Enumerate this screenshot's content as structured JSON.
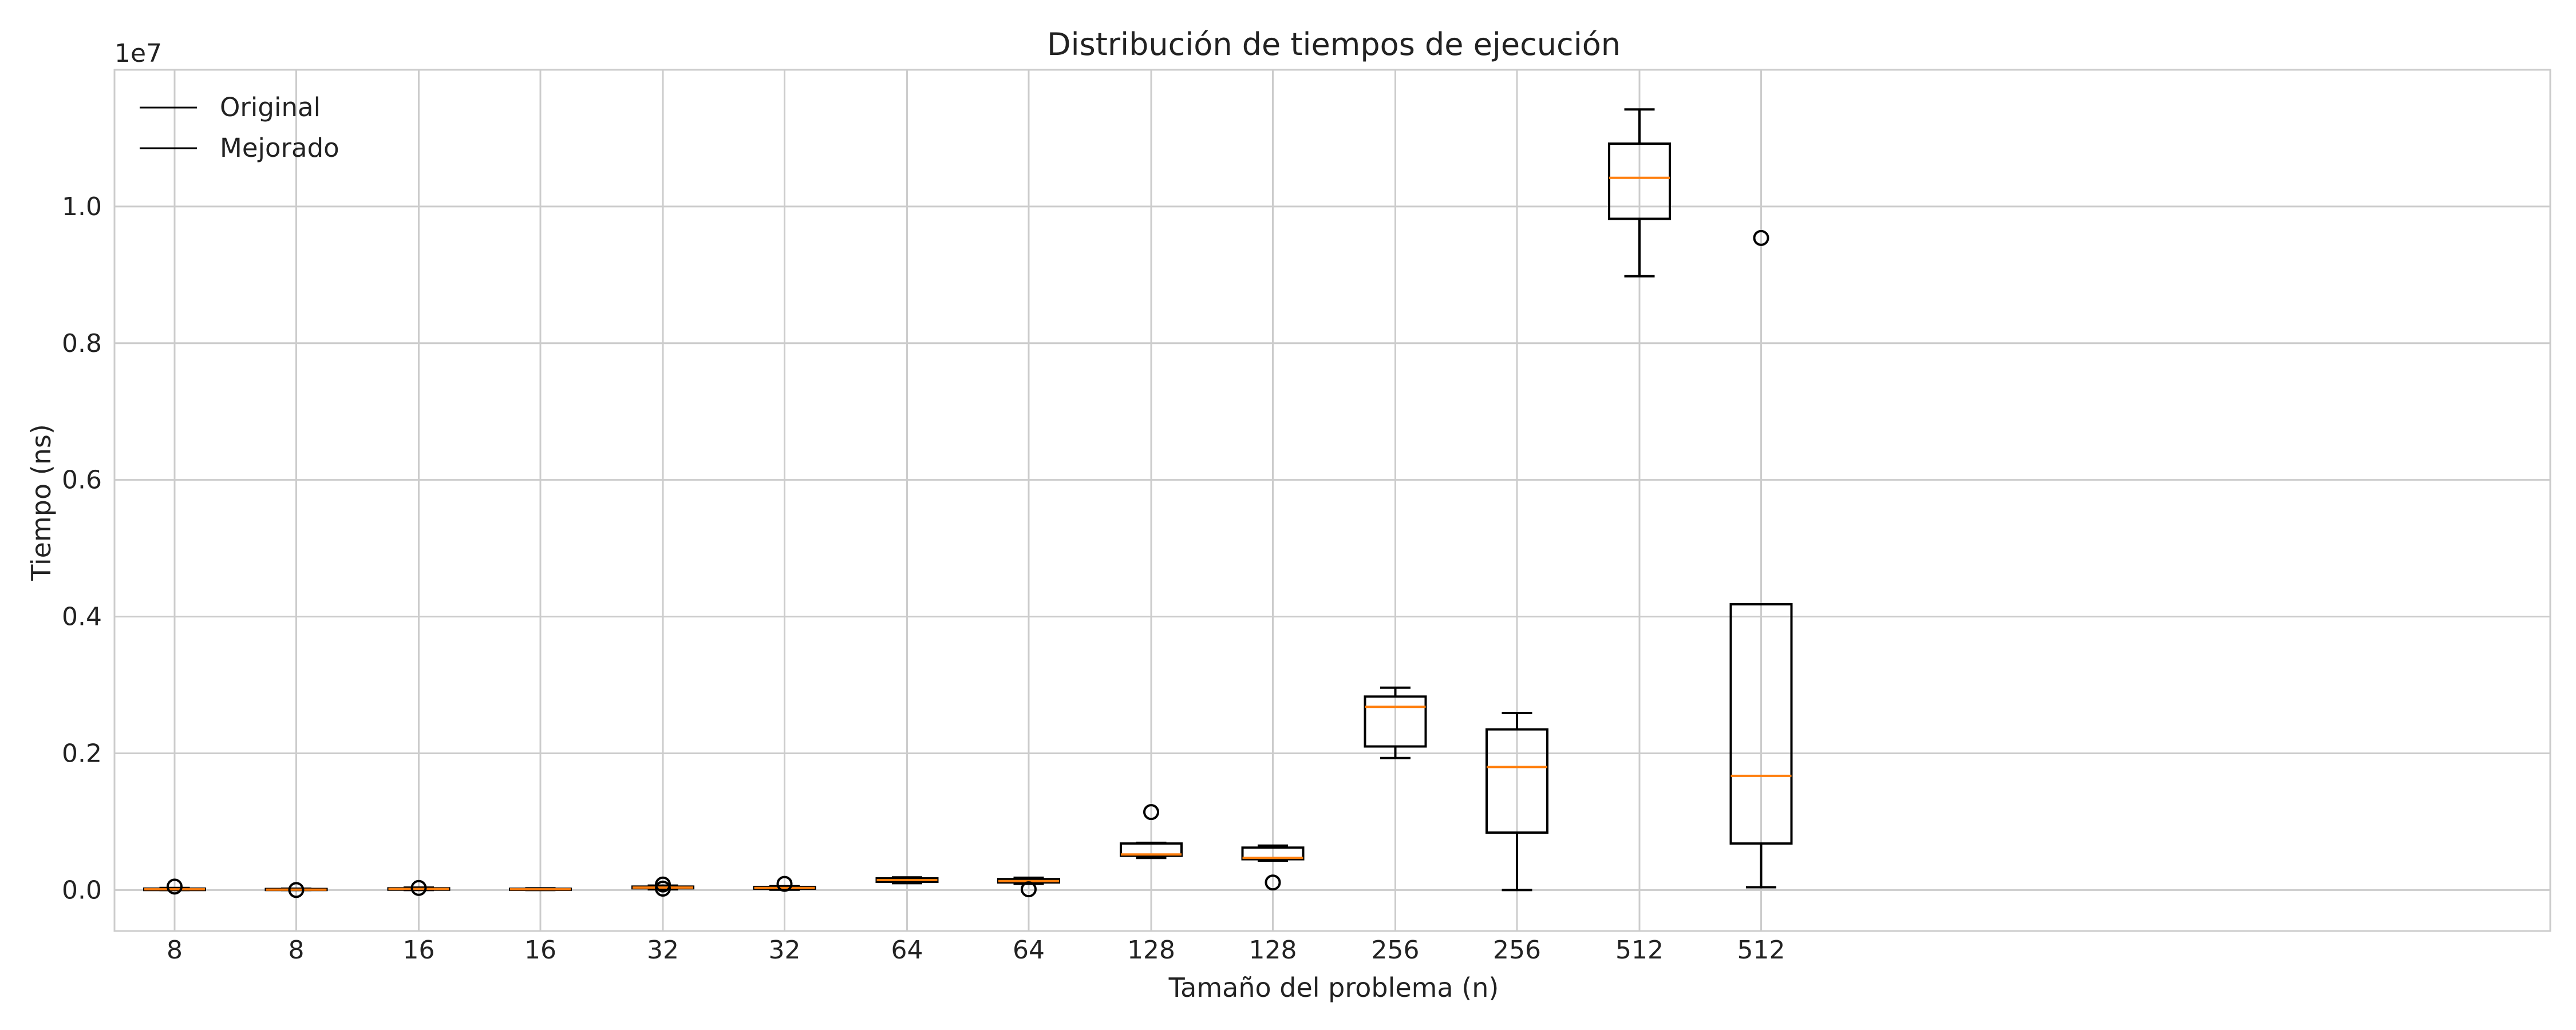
{
  "chart_data": {
    "type": "box",
    "title": "Distribución de tiempos de ejecución",
    "xlabel": "Tamaño del problema (n)",
    "ylabel": "Tiempo (ns)",
    "y_offset_label": "1e7",
    "y_scale": 10000000,
    "ylim": [
      -600000,
      12000000
    ],
    "yticks": [
      0,
      2000000,
      4000000,
      6000000,
      8000000,
      10000000
    ],
    "ytick_labels": [
      "0.0",
      "0.2",
      "0.4",
      "0.6",
      "0.8",
      "1.0"
    ],
    "grid": true,
    "legend": {
      "placement": "top-left",
      "entries": [
        "Original",
        "Mejorado"
      ]
    },
    "colors": {
      "box": "#000000",
      "median": "#ff7f0e",
      "grid": "#cccccc",
      "spine": "#cccccc"
    },
    "boxes": [
      {
        "label": "8",
        "series": "Original",
        "whislo": 0,
        "q1": 0,
        "median": 10000,
        "q3": 20000,
        "whishi": 30000,
        "fliers": [
          50000
        ]
      },
      {
        "label": "8",
        "series": "Mejorado",
        "whislo": 0,
        "q1": 0,
        "median": 5000,
        "q3": 15000,
        "whishi": 20000,
        "fliers": [
          0
        ]
      },
      {
        "label": "16",
        "series": "Original",
        "whislo": 0,
        "q1": 5000,
        "median": 15000,
        "q3": 25000,
        "whishi": 35000,
        "fliers": [
          30000
        ]
      },
      {
        "label": "16",
        "series": "Mejorado",
        "whislo": 0,
        "q1": 3000,
        "median": 10000,
        "q3": 18000,
        "whishi": 25000,
        "fliers": []
      },
      {
        "label": "32",
        "series": "Original",
        "whislo": 10000,
        "q1": 25000,
        "median": 35000,
        "q3": 50000,
        "whishi": 65000,
        "fliers": [
          20000,
          80000
        ]
      },
      {
        "label": "32",
        "series": "Mejorado",
        "whislo": 5000,
        "q1": 20000,
        "median": 30000,
        "q3": 45000,
        "whishi": 55000,
        "fliers": [
          90000
        ]
      },
      {
        "label": "64",
        "series": "Original",
        "whislo": 100000,
        "q1": 120000,
        "median": 145000,
        "q3": 170000,
        "whishi": 185000,
        "fliers": []
      },
      {
        "label": "64",
        "series": "Mejorado",
        "whislo": 90000,
        "q1": 110000,
        "median": 130000,
        "q3": 160000,
        "whishi": 180000,
        "fliers": [
          10000
        ]
      },
      {
        "label": "128",
        "series": "Original",
        "whislo": 470000,
        "q1": 500000,
        "median": 520000,
        "q3": 680000,
        "whishi": 690000,
        "fliers": [
          1140000
        ]
      },
      {
        "label": "128",
        "series": "Mejorado",
        "whislo": 430000,
        "q1": 450000,
        "median": 470000,
        "q3": 620000,
        "whishi": 650000,
        "fliers": [
          110000
        ]
      },
      {
        "label": "256",
        "series": "Original",
        "whislo": 1930000,
        "q1": 2100000,
        "median": 2680000,
        "q3": 2830000,
        "whishi": 2960000,
        "fliers": []
      },
      {
        "label": "256",
        "series": "Mejorado",
        "whislo": 0,
        "q1": 840000,
        "median": 1800000,
        "q3": 2350000,
        "whishi": 2590000,
        "fliers": []
      },
      {
        "label": "512",
        "series": "Original",
        "whislo": 8980000,
        "q1": 9820000,
        "median": 10420000,
        "q3": 10920000,
        "whishi": 11420000,
        "fliers": []
      },
      {
        "label": "512",
        "series": "Mejorado",
        "whislo": 40000,
        "q1": 680000,
        "median": 1670000,
        "q3": 4180000,
        "whishi": 4180000,
        "fliers": [
          9540000
        ]
      }
    ]
  }
}
